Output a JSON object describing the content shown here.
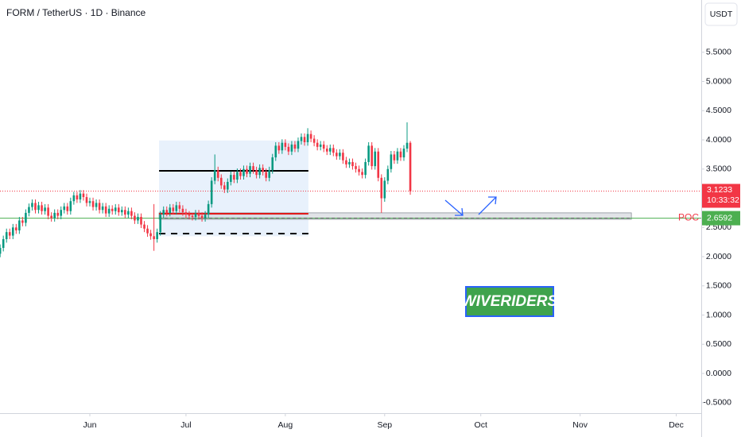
{
  "chart_data": {
    "type": "candlestick",
    "title": "FORM / TetherUS · 1D · Binance",
    "y_axis_label": "USDT",
    "up_color": "#089981",
    "down_color": "#f23645",
    "x": [
      -28,
      -27,
      -26,
      -25,
      -24,
      -23,
      -22,
      -21,
      -20,
      -19,
      -18,
      -17,
      -16,
      -15,
      -14,
      -13,
      -12,
      -11,
      -10,
      -9,
      -8,
      -7,
      -6,
      -5,
      -4,
      -3,
      -2,
      -1,
      0,
      1,
      2,
      3,
      4,
      5,
      6,
      7,
      8,
      9,
      10,
      11,
      12,
      13,
      14,
      15,
      16,
      17,
      18,
      19,
      20,
      21,
      22,
      23,
      24,
      25,
      26,
      27,
      28,
      29,
      30,
      31,
      32,
      33,
      34,
      35,
      36,
      37,
      38,
      39,
      40,
      41,
      42,
      43,
      44,
      45,
      46,
      47,
      48,
      49,
      50,
      51,
      52,
      53,
      54,
      55,
      56,
      57,
      58,
      59,
      60,
      61,
      62,
      63,
      64,
      65,
      66,
      67,
      68,
      69,
      70,
      71,
      72,
      73,
      74,
      75,
      76,
      77,
      78,
      79,
      80,
      81,
      82,
      83,
      84,
      85,
      86,
      87,
      88,
      89,
      90,
      91,
      92,
      93,
      94,
      95,
      96,
      97,
      98,
      99,
      100
    ],
    "open": [
      2.05,
      2.15,
      2.3,
      2.42,
      2.36,
      2.5,
      2.45,
      2.62,
      2.58,
      2.75,
      2.85,
      2.92,
      2.8,
      2.88,
      2.78,
      2.84,
      2.7,
      2.66,
      2.75,
      2.7,
      2.8,
      2.86,
      2.78,
      2.95,
      3.05,
      2.98,
      3.08,
      3.02,
      2.92,
      2.95,
      2.85,
      2.92,
      2.8,
      2.86,
      2.74,
      2.82,
      2.78,
      2.84,
      2.76,
      2.8,
      2.72,
      2.78,
      2.7,
      2.62,
      2.68,
      2.55,
      2.48,
      2.4,
      2.35,
      2.3,
      2.42,
      2.72,
      2.8,
      2.75,
      2.84,
      2.78,
      2.88,
      2.82,
      2.76,
      2.72,
      2.7,
      2.68,
      2.74,
      2.7,
      2.66,
      2.72,
      2.9,
      3.3,
      3.48,
      3.35,
      3.22,
      3.15,
      3.28,
      3.4,
      3.32,
      3.45,
      3.38,
      3.5,
      3.42,
      3.55,
      3.48,
      3.4,
      3.52,
      3.45,
      3.35,
      3.48,
      3.7,
      3.9,
      3.82,
      3.95,
      3.88,
      3.8,
      3.92,
      3.85,
      3.98,
      4.05,
      3.96,
      4.1,
      4.02,
      3.95,
      3.88,
      3.92,
      3.85,
      3.8,
      3.86,
      3.78,
      3.72,
      3.78,
      3.65,
      3.58,
      3.62,
      3.55,
      3.5,
      3.45,
      3.4,
      3.62,
      3.9,
      3.55,
      3.8,
      3.35,
      3.0,
      3.3,
      3.5,
      3.75,
      3.65,
      3.8,
      3.7,
      3.85,
      3.95
    ],
    "high": [
      2.21,
      2.36,
      2.48,
      2.48,
      2.56,
      2.56,
      2.68,
      2.68,
      2.81,
      2.91,
      2.98,
      2.98,
      2.94,
      2.94,
      2.9,
      2.9,
      2.76,
      2.81,
      2.81,
      2.86,
      2.92,
      2.92,
      3.01,
      3.11,
      3.11,
      3.14,
      3.14,
      3.08,
      3.01,
      3.01,
      2.98,
      2.98,
      2.92,
      2.92,
      2.88,
      2.88,
      2.9,
      2.9,
      2.86,
      2.86,
      2.84,
      2.84,
      2.76,
      2.74,
      2.74,
      2.61,
      2.54,
      2.46,
      2.9,
      2.48,
      2.78,
      2.86,
      2.86,
      2.9,
      2.9,
      2.94,
      2.94,
      2.88,
      2.82,
      2.78,
      2.74,
      2.8,
      2.8,
      2.76,
      2.78,
      2.96,
      3.36,
      3.75,
      3.54,
      3.41,
      3.28,
      3.34,
      3.46,
      3.46,
      3.51,
      3.51,
      3.56,
      3.56,
      3.61,
      3.61,
      3.54,
      3.58,
      3.58,
      3.51,
      3.54,
      3.76,
      3.96,
      3.96,
      4.01,
      4.01,
      3.94,
      3.98,
      3.98,
      4.04,
      4.11,
      4.11,
      4.2,
      4.16,
      4.08,
      4.01,
      3.98,
      3.98,
      3.91,
      3.92,
      3.92,
      3.84,
      3.84,
      3.84,
      3.71,
      3.68,
      3.68,
      3.61,
      3.56,
      3.51,
      3.68,
      3.96,
      3.96,
      3.86,
      3.86,
      3.41,
      3.36,
      3.56,
      3.81,
      3.81,
      3.86,
      3.86,
      3.91,
      4.3,
      3.98
    ],
    "low": [
      1.99,
      2.09,
      2.24,
      2.3,
      2.3,
      2.39,
      2.39,
      2.52,
      2.52,
      2.69,
      2.79,
      2.74,
      2.74,
      2.72,
      2.72,
      2.64,
      2.6,
      2.6,
      2.64,
      2.64,
      2.74,
      2.72,
      2.72,
      2.89,
      2.92,
      2.92,
      2.96,
      2.86,
      2.86,
      2.79,
      2.79,
      2.74,
      2.74,
      2.68,
      2.68,
      2.72,
      2.72,
      2.7,
      2.7,
      2.66,
      2.66,
      2.64,
      2.56,
      2.56,
      2.49,
      2.42,
      2.34,
      2.29,
      2.1,
      2.24,
      2.36,
      2.66,
      2.69,
      2.69,
      2.72,
      2.72,
      2.76,
      2.7,
      2.66,
      2.64,
      2.62,
      2.62,
      2.64,
      2.6,
      2.6,
      2.66,
      2.84,
      3.24,
      3.29,
      3.16,
      3.09,
      3.09,
      3.22,
      3.26,
      3.26,
      3.32,
      3.32,
      3.36,
      3.36,
      3.42,
      3.34,
      3.34,
      3.39,
      3.29,
      3.29,
      3.42,
      3.64,
      3.76,
      3.76,
      3.82,
      3.74,
      3.74,
      3.79,
      3.79,
      3.92,
      3.9,
      3.9,
      3.96,
      3.89,
      3.82,
      3.82,
      3.79,
      3.74,
      3.74,
      3.72,
      3.66,
      3.66,
      3.59,
      3.52,
      3.52,
      3.49,
      3.44,
      3.39,
      3.34,
      3.34,
      3.56,
      3.49,
      3.49,
      3.29,
      2.75,
      2.94,
      3.24,
      3.44,
      3.59,
      3.59,
      3.64,
      3.64,
      3.79,
      3.06
    ],
    "close": [
      2.15,
      2.3,
      2.42,
      2.36,
      2.5,
      2.45,
      2.62,
      2.58,
      2.75,
      2.85,
      2.92,
      2.8,
      2.88,
      2.78,
      2.84,
      2.7,
      2.66,
      2.75,
      2.7,
      2.8,
      2.86,
      2.78,
      2.95,
      3.05,
      2.98,
      3.08,
      3.02,
      2.92,
      2.95,
      2.85,
      2.92,
      2.8,
      2.86,
      2.74,
      2.82,
      2.78,
      2.84,
      2.76,
      2.8,
      2.72,
      2.78,
      2.7,
      2.62,
      2.68,
      2.55,
      2.48,
      2.4,
      2.35,
      2.3,
      2.42,
      2.72,
      2.8,
      2.75,
      2.84,
      2.78,
      2.88,
      2.82,
      2.76,
      2.72,
      2.7,
      2.68,
      2.74,
      2.7,
      2.66,
      2.72,
      2.9,
      3.3,
      3.48,
      3.35,
      3.22,
      3.15,
      3.28,
      3.4,
      3.32,
      3.45,
      3.38,
      3.5,
      3.42,
      3.55,
      3.48,
      3.4,
      3.52,
      3.45,
      3.35,
      3.48,
      3.7,
      3.9,
      3.82,
      3.95,
      3.88,
      3.8,
      3.92,
      3.85,
      3.98,
      4.05,
      3.96,
      4.1,
      4.02,
      3.95,
      3.88,
      3.92,
      3.85,
      3.8,
      3.86,
      3.78,
      3.72,
      3.78,
      3.65,
      3.58,
      3.62,
      3.55,
      3.5,
      3.45,
      3.4,
      3.62,
      3.9,
      3.55,
      3.8,
      3.35,
      3.0,
      3.3,
      3.5,
      3.75,
      3.65,
      3.8,
      3.7,
      3.85,
      3.95,
      3.12
    ],
    "xlim": [
      -28.04,
      190.8
    ],
    "xticks": [
      {
        "value": 0,
        "label": "Jun"
      },
      {
        "value": 30,
        "label": "Jul"
      },
      {
        "value": 61,
        "label": "Aug"
      },
      {
        "value": 92,
        "label": "Sep"
      },
      {
        "value": 122,
        "label": "Oct"
      },
      {
        "value": 153,
        "label": "Nov"
      },
      {
        "value": 183,
        "label": "Dec"
      }
    ],
    "ylim": [
      -0.68,
      6.395
    ],
    "yticks": [
      {
        "value": -0.5,
        "label": "-0.5000"
      },
      {
        "value": 0,
        "label": "0.0000"
      },
      {
        "value": 0.5,
        "label": "0.5000"
      },
      {
        "value": 1,
        "label": "1.0000"
      },
      {
        "value": 1.5,
        "label": "1.5000"
      },
      {
        "value": 2,
        "label": "2.0000"
      },
      {
        "value": 2.5,
        "label": "2.5000"
      },
      {
        "value": 3,
        "label": "3.0000"
      },
      {
        "value": 3.5,
        "label": "3.5000"
      },
      {
        "value": 4,
        "label": "4.0000"
      },
      {
        "value": 4.5,
        "label": "4.5000"
      },
      {
        "value": 5,
        "label": "5.0000"
      },
      {
        "value": 5.5,
        "label": "5.5000"
      }
    ],
    "profile_range": {
      "low": 2.35,
      "high": 3.99,
      "x": [
        21.6,
        68.2
      ],
      "color": "#e8f1fc"
    },
    "zone": {
      "low": 2.64,
      "high": 2.75,
      "x": [
        21.6,
        169
      ],
      "color": "#c9ccd3"
    },
    "levels": [
      {
        "value": 3.47,
        "x": [
          21.6,
          68.2
        ],
        "color": "#000000",
        "dashed": false
      },
      {
        "value": 2.735,
        "x": [
          21.6,
          68.2
        ],
        "color": "#e01b1b",
        "dashed": false
      },
      {
        "value": 2.395,
        "x": [
          21.6,
          68.2
        ],
        "color": "#000000",
        "dashed": true
      }
    ],
    "poc": {
      "label": "POC",
      "value": 2.6592,
      "color": "#4caf50"
    },
    "current_price": {
      "value": 3.1233,
      "countdown": "10:33:32",
      "color": "#f23645"
    },
    "watermark": "WIVERIDERS"
  }
}
